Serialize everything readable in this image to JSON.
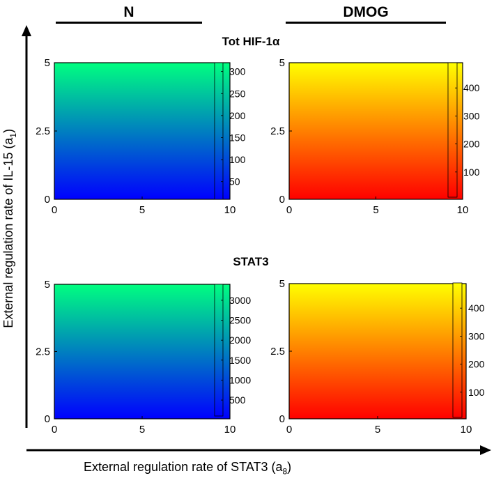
{
  "columns": {
    "left": "N",
    "right": "DMOG"
  },
  "rows": {
    "top": "Tot HIF-1α",
    "bottom": "STAT3"
  },
  "axes": {
    "xlabel_main": "External regulation rate of STAT3 (a",
    "xlabel_sub": "8",
    "xlabel_end": ")",
    "ylabel_main": "External regulation rate of  IL-15 (a",
    "ylabel_sub": "1",
    "ylabel_end": ")"
  },
  "chart_data": [
    {
      "id": "tot-hif1a-n",
      "type": "heatmap",
      "title": "Tot HIF-1α",
      "condition": "N",
      "xlim": [
        0,
        10
      ],
      "ylim": [
        0,
        5
      ],
      "xticks": [
        "0",
        "5",
        "10"
      ],
      "yticks": [
        "0",
        "2.5",
        "5"
      ],
      "colormap": "winter",
      "color_low": "#0000ff",
      "color_high": "#00ff80",
      "clim": [
        10,
        320
      ],
      "colorbar_ticks": [
        50,
        100,
        150,
        200,
        250,
        300
      ],
      "gradient_direction": "vertical"
    },
    {
      "id": "tot-hif1a-dmog",
      "type": "heatmap",
      "title": "Tot HIF-1α",
      "condition": "DMOG",
      "xlim": [
        0,
        10
      ],
      "ylim": [
        0,
        5
      ],
      "xticks": [
        "0",
        "5",
        "10"
      ],
      "yticks": [
        "0",
        "2.5",
        "5"
      ],
      "colormap": "autumn",
      "color_low": "#ff0000",
      "color_high": "#ffff00",
      "clim": [
        10,
        490
      ],
      "colorbar_ticks": [
        100,
        200,
        300,
        400
      ],
      "gradient_direction": "vertical"
    },
    {
      "id": "stat3-n",
      "type": "heatmap",
      "title": "STAT3",
      "condition": "N",
      "xlim": [
        0,
        10
      ],
      "ylim": [
        0,
        5
      ],
      "xticks": [
        "0",
        "5",
        "10"
      ],
      "yticks": [
        "0",
        "2.5",
        "5"
      ],
      "colormap": "winter",
      "color_low": "#0000ff",
      "color_high": "#00ff80",
      "clim": [
        100,
        3400
      ],
      "colorbar_ticks": [
        500,
        1000,
        1500,
        2000,
        2500,
        3000
      ],
      "gradient_direction": "vertical"
    },
    {
      "id": "stat3-dmog",
      "type": "heatmap",
      "title": "STAT3",
      "condition": "DMOG",
      "xlim": [
        0,
        10
      ],
      "ylim": [
        0,
        5
      ],
      "xticks": [
        "0",
        "5",
        "10"
      ],
      "yticks": [
        "0",
        "2.5",
        "5"
      ],
      "colormap": "autumn",
      "color_low": "#ff0000",
      "color_high": "#ffff00",
      "clim": [
        10,
        490
      ],
      "colorbar_ticks": [
        100,
        200,
        300,
        400
      ],
      "gradient_direction": "vertical"
    }
  ]
}
